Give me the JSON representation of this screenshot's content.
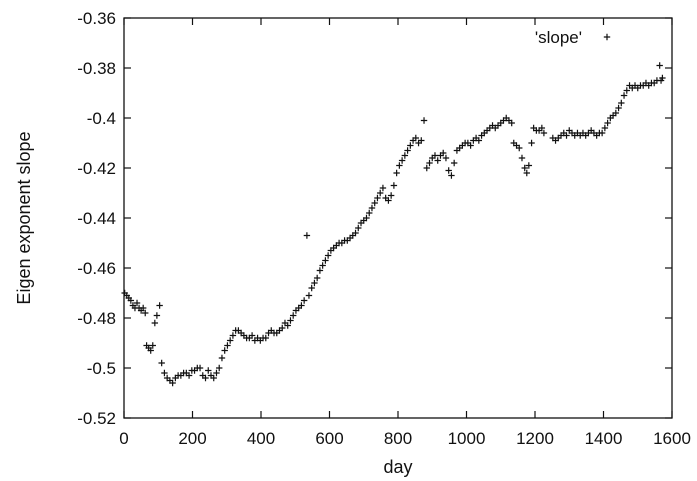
{
  "chart_data": {
    "type": "scatter",
    "xlabel": "day",
    "ylabel": "Eigen exponent slope",
    "xlim": [
      0,
      1600
    ],
    "ylim": [
      -0.52,
      -0.36
    ],
    "xticks": [
      0,
      200,
      400,
      600,
      800,
      1000,
      1200,
      1400,
      1600
    ],
    "yticks": [
      -0.52,
      -0.5,
      -0.48,
      -0.46,
      -0.44,
      -0.42,
      -0.4,
      -0.38,
      -0.36
    ],
    "ytick_labels": [
      "-0.52",
      "-0.5",
      "-0.48",
      "-0.46",
      "-0.44",
      "-0.42",
      "-0.4",
      "-0.38",
      "-0.36"
    ],
    "grid": false,
    "legend_position": "top-right",
    "series": [
      {
        "name": "'slope'",
        "marker": "plus",
        "color": "#111111",
        "points": [
          [
            2,
            -0.47
          ],
          [
            8,
            -0.471
          ],
          [
            14,
            -0.472
          ],
          [
            20,
            -0.473
          ],
          [
            26,
            -0.475
          ],
          [
            32,
            -0.476
          ],
          [
            38,
            -0.474
          ],
          [
            44,
            -0.476
          ],
          [
            50,
            -0.477
          ],
          [
            56,
            -0.476
          ],
          [
            62,
            -0.478
          ],
          [
            66,
            -0.491
          ],
          [
            72,
            -0.492
          ],
          [
            78,
            -0.493
          ],
          [
            84,
            -0.491
          ],
          [
            90,
            -0.482
          ],
          [
            96,
            -0.479
          ],
          [
            104,
            -0.475
          ],
          [
            110,
            -0.498
          ],
          [
            118,
            -0.502
          ],
          [
            126,
            -0.504
          ],
          [
            134,
            -0.505
          ],
          [
            142,
            -0.506
          ],
          [
            150,
            -0.504
          ],
          [
            158,
            -0.503
          ],
          [
            166,
            -0.503
          ],
          [
            174,
            -0.502
          ],
          [
            182,
            -0.502
          ],
          [
            190,
            -0.503
          ],
          [
            198,
            -0.501
          ],
          [
            206,
            -0.501
          ],
          [
            214,
            -0.5
          ],
          [
            222,
            -0.5
          ],
          [
            230,
            -0.503
          ],
          [
            238,
            -0.504
          ],
          [
            246,
            -0.501
          ],
          [
            254,
            -0.503
          ],
          [
            262,
            -0.504
          ],
          [
            270,
            -0.502
          ],
          [
            278,
            -0.5
          ],
          [
            286,
            -0.496
          ],
          [
            294,
            -0.493
          ],
          [
            302,
            -0.491
          ],
          [
            310,
            -0.489
          ],
          [
            318,
            -0.487
          ],
          [
            326,
            -0.485
          ],
          [
            334,
            -0.485
          ],
          [
            342,
            -0.486
          ],
          [
            350,
            -0.487
          ],
          [
            358,
            -0.488
          ],
          [
            366,
            -0.488
          ],
          [
            374,
            -0.487
          ],
          [
            382,
            -0.489
          ],
          [
            390,
            -0.488
          ],
          [
            398,
            -0.489
          ],
          [
            406,
            -0.488
          ],
          [
            414,
            -0.488
          ],
          [
            422,
            -0.486
          ],
          [
            430,
            -0.485
          ],
          [
            438,
            -0.486
          ],
          [
            446,
            -0.486
          ],
          [
            454,
            -0.485
          ],
          [
            462,
            -0.484
          ],
          [
            470,
            -0.482
          ],
          [
            478,
            -0.483
          ],
          [
            486,
            -0.481
          ],
          [
            494,
            -0.479
          ],
          [
            502,
            -0.477
          ],
          [
            510,
            -0.476
          ],
          [
            518,
            -0.475
          ],
          [
            526,
            -0.473
          ],
          [
            534,
            -0.447
          ],
          [
            540,
            -0.471
          ],
          [
            548,
            -0.468
          ],
          [
            556,
            -0.466
          ],
          [
            564,
            -0.464
          ],
          [
            572,
            -0.461
          ],
          [
            580,
            -0.459
          ],
          [
            588,
            -0.457
          ],
          [
            596,
            -0.455
          ],
          [
            604,
            -0.453
          ],
          [
            612,
            -0.452
          ],
          [
            620,
            -0.451
          ],
          [
            628,
            -0.45
          ],
          [
            636,
            -0.45
          ],
          [
            644,
            -0.449
          ],
          [
            652,
            -0.449
          ],
          [
            660,
            -0.448
          ],
          [
            668,
            -0.447
          ],
          [
            676,
            -0.446
          ],
          [
            684,
            -0.444
          ],
          [
            692,
            -0.442
          ],
          [
            700,
            -0.441
          ],
          [
            708,
            -0.44
          ],
          [
            716,
            -0.438
          ],
          [
            724,
            -0.436
          ],
          [
            732,
            -0.434
          ],
          [
            740,
            -0.432
          ],
          [
            748,
            -0.43
          ],
          [
            756,
            -0.428
          ],
          [
            764,
            -0.432
          ],
          [
            772,
            -0.433
          ],
          [
            780,
            -0.431
          ],
          [
            788,
            -0.427
          ],
          [
            796,
            -0.422
          ],
          [
            804,
            -0.419
          ],
          [
            812,
            -0.417
          ],
          [
            820,
            -0.415
          ],
          [
            828,
            -0.413
          ],
          [
            836,
            -0.411
          ],
          [
            844,
            -0.409
          ],
          [
            852,
            -0.408
          ],
          [
            860,
            -0.41
          ],
          [
            868,
            -0.409
          ],
          [
            876,
            -0.401
          ],
          [
            884,
            -0.42
          ],
          [
            892,
            -0.418
          ],
          [
            900,
            -0.416
          ],
          [
            908,
            -0.415
          ],
          [
            916,
            -0.417
          ],
          [
            924,
            -0.415
          ],
          [
            932,
            -0.414
          ],
          [
            940,
            -0.416
          ],
          [
            948,
            -0.421
          ],
          [
            956,
            -0.423
          ],
          [
            964,
            -0.418
          ],
          [
            972,
            -0.413
          ],
          [
            980,
            -0.412
          ],
          [
            988,
            -0.411
          ],
          [
            996,
            -0.41
          ],
          [
            1004,
            -0.41
          ],
          [
            1012,
            -0.411
          ],
          [
            1020,
            -0.409
          ],
          [
            1028,
            -0.408
          ],
          [
            1036,
            -0.409
          ],
          [
            1044,
            -0.407
          ],
          [
            1052,
            -0.406
          ],
          [
            1060,
            -0.405
          ],
          [
            1068,
            -0.404
          ],
          [
            1076,
            -0.403
          ],
          [
            1084,
            -0.404
          ],
          [
            1092,
            -0.403
          ],
          [
            1100,
            -0.402
          ],
          [
            1108,
            -0.401
          ],
          [
            1116,
            -0.4
          ],
          [
            1124,
            -0.401
          ],
          [
            1132,
            -0.402
          ],
          [
            1138,
            -0.41
          ],
          [
            1146,
            -0.411
          ],
          [
            1154,
            -0.412
          ],
          [
            1162,
            -0.416
          ],
          [
            1170,
            -0.42
          ],
          [
            1176,
            -0.422
          ],
          [
            1182,
            -0.419
          ],
          [
            1190,
            -0.41
          ],
          [
            1196,
            -0.404
          ],
          [
            1204,
            -0.405
          ],
          [
            1212,
            -0.405
          ],
          [
            1220,
            -0.404
          ],
          [
            1226,
            -0.406
          ],
          [
            1252,
            -0.408
          ],
          [
            1260,
            -0.409
          ],
          [
            1268,
            -0.408
          ],
          [
            1276,
            -0.407
          ],
          [
            1284,
            -0.406
          ],
          [
            1292,
            -0.407
          ],
          [
            1300,
            -0.405
          ],
          [
            1308,
            -0.406
          ],
          [
            1316,
            -0.407
          ],
          [
            1324,
            -0.406
          ],
          [
            1332,
            -0.407
          ],
          [
            1340,
            -0.406
          ],
          [
            1348,
            -0.407
          ],
          [
            1356,
            -0.406
          ],
          [
            1364,
            -0.405
          ],
          [
            1372,
            -0.406
          ],
          [
            1380,
            -0.407
          ],
          [
            1388,
            -0.406
          ],
          [
            1396,
            -0.406
          ],
          [
            1404,
            -0.404
          ],
          [
            1412,
            -0.402
          ],
          [
            1420,
            -0.4
          ],
          [
            1428,
            -0.399
          ],
          [
            1436,
            -0.398
          ],
          [
            1444,
            -0.396
          ],
          [
            1452,
            -0.394
          ],
          [
            1460,
            -0.391
          ],
          [
            1468,
            -0.389
          ],
          [
            1476,
            -0.387
          ],
          [
            1484,
            -0.388
          ],
          [
            1492,
            -0.387
          ],
          [
            1500,
            -0.388
          ],
          [
            1508,
            -0.387
          ],
          [
            1516,
            -0.387
          ],
          [
            1524,
            -0.386
          ],
          [
            1532,
            -0.387
          ],
          [
            1540,
            -0.386
          ],
          [
            1548,
            -0.386
          ],
          [
            1556,
            -0.385
          ],
          [
            1564,
            -0.379
          ],
          [
            1568,
            -0.385
          ],
          [
            1572,
            -0.384
          ]
        ]
      }
    ]
  }
}
